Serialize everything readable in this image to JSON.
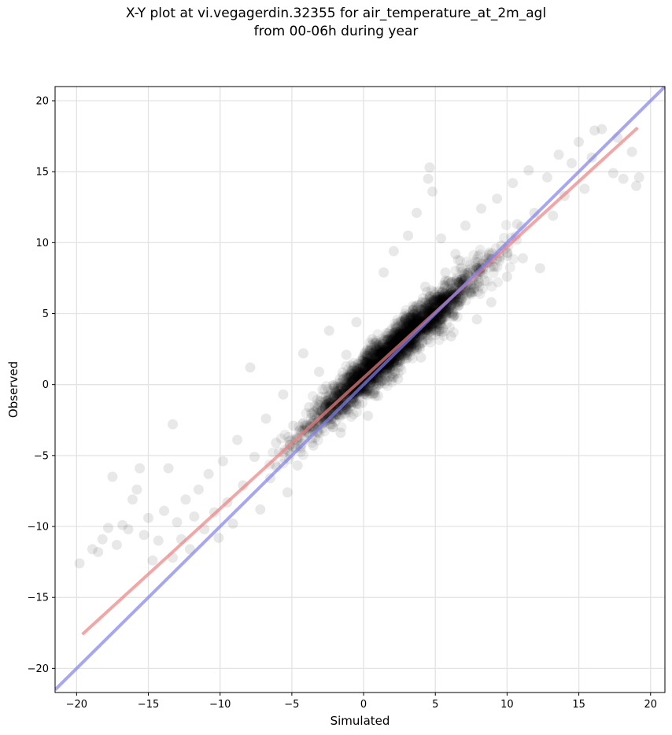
{
  "title_line1": "X-Y plot at vi.vegagerdin.32355 for air_temperature_at_2m_agl",
  "title_line2": "from 00-06h during year",
  "chart_data": {
    "type": "scatter",
    "title": "X-Y plot at vi.vegagerdin.32355 for air_temperature_at_2m_agl from 00-06h during year",
    "xlabel": "Simulated",
    "ylabel": "Observed",
    "xlim": [
      -21.5,
      21
    ],
    "ylim": [
      -21.7,
      21
    ],
    "xticks": [
      -20,
      -15,
      -10,
      -5,
      0,
      5,
      10,
      15,
      20
    ],
    "yticks": [
      -20,
      -15,
      -10,
      -5,
      0,
      5,
      10,
      15,
      20
    ],
    "xtick_labels": [
      "−20",
      "−15",
      "−10",
      "−5",
      "0",
      "5",
      "10",
      "15",
      "20"
    ],
    "ytick_labels": [
      "−20",
      "−15",
      "−10",
      "−5",
      "0",
      "5",
      "10",
      "15",
      "20"
    ],
    "grid": true,
    "series": [
      {
        "kind": "points",
        "color": "#000000",
        "points": [
          [
            -19.8,
            -12.6
          ],
          [
            -18.9,
            -11.6
          ],
          [
            -18.5,
            -11.8
          ],
          [
            -18.2,
            -10.9
          ],
          [
            -17.8,
            -10.1
          ],
          [
            -17.5,
            -6.5
          ],
          [
            -17.2,
            -11.3
          ],
          [
            -16.8,
            -9.9
          ],
          [
            -16.4,
            -10.2
          ],
          [
            -16.1,
            -8.1
          ],
          [
            -15.8,
            -7.4
          ],
          [
            -15.6,
            -5.9
          ],
          [
            -15.3,
            -10.6
          ],
          [
            -15.0,
            -9.4
          ],
          [
            -14.7,
            -12.4
          ],
          [
            -14.3,
            -11.0
          ],
          [
            -13.9,
            -8.9
          ],
          [
            -13.6,
            -5.9
          ],
          [
            -13.3,
            -12.2
          ],
          [
            -13.0,
            -9.7
          ],
          [
            -13.3,
            -2.8
          ],
          [
            -12.7,
            -10.9
          ],
          [
            -12.4,
            -8.1
          ],
          [
            -12.1,
            -11.6
          ],
          [
            -11.8,
            -9.3
          ],
          [
            -11.5,
            -7.4
          ],
          [
            -11.1,
            -10.2
          ],
          [
            -10.8,
            -6.3
          ],
          [
            -10.4,
            -9.0
          ],
          [
            -10.1,
            -10.8
          ],
          [
            -9.8,
            -5.4
          ],
          [
            -9.5,
            -8.3
          ],
          [
            -9.1,
            -9.8
          ],
          [
            -8.8,
            -3.9
          ],
          [
            -8.4,
            -7.1
          ],
          [
            -7.9,
            1.2
          ],
          [
            -7.6,
            -5.1
          ],
          [
            -7.2,
            -8.8
          ],
          [
            -6.8,
            -2.4
          ],
          [
            -6.5,
            -6.6
          ],
          [
            -6.1,
            -4.1
          ],
          [
            -5.6,
            -0.7
          ],
          [
            -5.3,
            -7.6
          ],
          [
            -4.9,
            -2.9
          ],
          [
            -4.6,
            -5.7
          ],
          [
            -4.2,
            2.2
          ],
          [
            -3.8,
            -1.6
          ],
          [
            -3.5,
            -4.3
          ],
          [
            -3.1,
            0.9
          ],
          [
            -2.7,
            -2.6
          ],
          [
            -2.4,
            3.8
          ],
          [
            -2.0,
            -0.4
          ],
          [
            -1.6,
            -3.4
          ],
          [
            -1.2,
            2.1
          ],
          [
            -0.9,
            -1.2
          ],
          [
            -0.5,
            4.4
          ],
          [
            -0.1,
            0.6
          ],
          [
            0.3,
            -2.2
          ],
          [
            0.6,
            3.2
          ],
          [
            1.0,
            -0.8
          ],
          [
            1.4,
            7.9
          ],
          [
            1.8,
            2.1
          ],
          [
            2.1,
            9.4
          ],
          [
            2.4,
            0.4
          ],
          [
            2.8,
            4.8
          ],
          [
            3.1,
            10.5
          ],
          [
            3.4,
            3.6
          ],
          [
            3.7,
            12.1
          ],
          [
            4.0,
            1.9
          ],
          [
            4.3,
            6.9
          ],
          [
            4.5,
            14.5
          ],
          [
            4.8,
            13.6
          ],
          [
            4.6,
            15.3
          ],
          [
            5.1,
            4.3
          ],
          [
            5.4,
            10.3
          ],
          [
            5.7,
            7.9
          ],
          [
            6.1,
            3.4
          ],
          [
            6.4,
            9.2
          ],
          [
            6.8,
            5.9
          ],
          [
            7.1,
            11.2
          ],
          [
            7.5,
            7.0
          ],
          [
            7.9,
            4.6
          ],
          [
            8.2,
            12.4
          ],
          [
            8.6,
            8.9
          ],
          [
            8.9,
            5.8
          ],
          [
            9.3,
            13.1
          ],
          [
            9.6,
            9.8
          ],
          [
            10.0,
            7.6
          ],
          [
            10.4,
            14.2
          ],
          [
            10.7,
            11.3
          ],
          [
            11.1,
            8.9
          ],
          [
            11.5,
            15.1
          ],
          [
            11.9,
            12.1
          ],
          [
            12.3,
            8.2
          ],
          [
            12.8,
            14.6
          ],
          [
            13.2,
            11.9
          ],
          [
            13.6,
            16.2
          ],
          [
            14.0,
            13.3
          ],
          [
            14.5,
            15.6
          ],
          [
            15.0,
            17.1
          ],
          [
            15.4,
            13.8
          ],
          [
            16.1,
            17.9
          ],
          [
            16.6,
            18.0
          ],
          [
            17.4,
            14.9
          ],
          [
            18.1,
            14.5
          ],
          [
            18.7,
            16.4
          ],
          [
            19.2,
            14.6
          ],
          [
            19.0,
            14.0
          ],
          [
            17.7,
            17.4
          ],
          [
            15.9,
            16.0
          ]
        ]
      },
      {
        "kind": "line",
        "name": "",
        "color": "#f08080",
        "x": [
          -19.6,
          19.1
        ],
        "y": [
          -17.6,
          18.1
        ]
      },
      {
        "kind": "line",
        "name": "",
        "color": "#8080f0",
        "x": [
          -21.5,
          21.0
        ],
        "y": [
          -21.5,
          21.0
        ]
      }
    ]
  }
}
